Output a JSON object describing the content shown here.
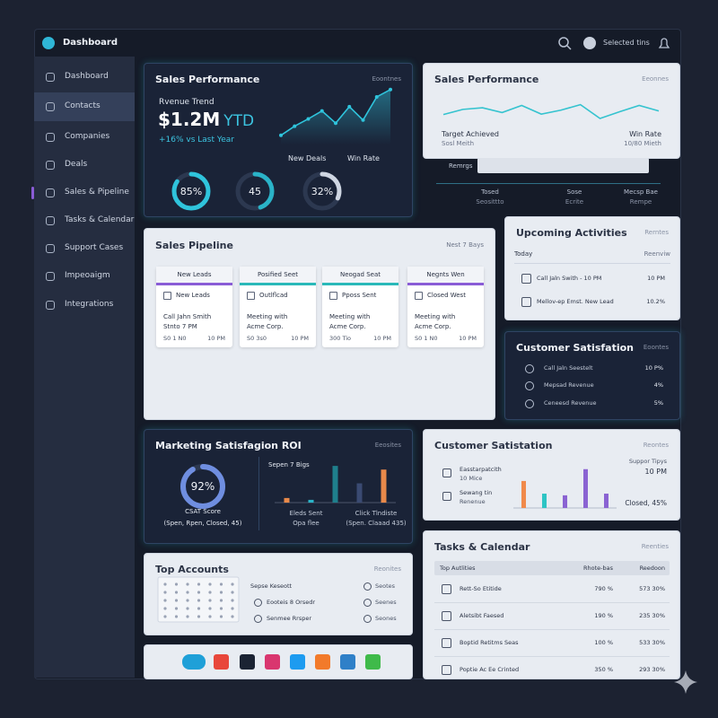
{
  "topbar": {
    "title": "Dashboard",
    "user": "Selected tins"
  },
  "sidebar": [
    "Dashboard",
    "Contacts",
    "Companies",
    "Deals",
    "Sales & Pipeline",
    "Tasks & Calendar",
    "Support Cases",
    "Impeoaigm",
    "Integrations"
  ],
  "sales_performance": {
    "title": "Sales Performance",
    "action": "Eoontnes",
    "trend_label": "Rvenue Trend",
    "revenue": "$1.2M",
    "revenue_suffix": "YTD",
    "change": "+16% vs Last Year",
    "legend": [
      "New Deals",
      "Win Rate"
    ],
    "trend": [
      15,
      30,
      42,
      55,
      35,
      62,
      40,
      78,
      90
    ],
    "ylim": [
      0,
      100
    ],
    "donuts": [
      {
        "value": 85,
        "label": "85%",
        "color": "#2fc4dc"
      },
      {
        "value": 45,
        "label": "45",
        "color": "#2ab3c8"
      },
      {
        "value": 32,
        "label": "32%",
        "color": "#cfd6e2"
      }
    ]
  },
  "sales_performance_2": {
    "title": "Sales Performance",
    "action": "Eeonnes",
    "trend": [
      35,
      48,
      52,
      40,
      58,
      36,
      46,
      60,
      25,
      42,
      58,
      44
    ],
    "ylim": [
      0,
      100
    ],
    "left": [
      "Target Achieved",
      "Sosl Meith"
    ],
    "right": [
      "Win Rate",
      "10/80 Mieth"
    ],
    "tab": "Remrgs",
    "stats": [
      [
        "Tosed",
        "Seosittto"
      ],
      [
        "Sose",
        "Ecrite"
      ],
      [
        "Mecsp Bae",
        "Rempe"
      ]
    ]
  },
  "pipeline": {
    "title": "Sales Pipeline",
    "range": "Nest 7 Bays",
    "columns": [
      {
        "header": "New Leads",
        "color": "#8a5cd6",
        "tag": "New Leads",
        "lines": [
          "Call Jahn Smith",
          "Stnto 7 PM"
        ],
        "footer": [
          "S0 1 N0",
          "10 PM"
        ]
      },
      {
        "header": "Posified Seet",
        "color": "#2ab9b9",
        "tag": "Outlflcad",
        "lines": [
          "Meeting with",
          "Acme Corp."
        ],
        "footer": [
          "S0 3s0",
          "10 PM"
        ]
      },
      {
        "header": "Neogad Seat",
        "color": "#2ab9b9",
        "tag": "Pposs Sent",
        "lines": [
          "Meeting with",
          "Acme Corp."
        ],
        "footer": [
          "300 Tio",
          "10 PM"
        ]
      },
      {
        "header": "Negnts Wen",
        "color": "#8a5cd6",
        "tag": "Closed West",
        "lines": [
          "Meeting with",
          "Acme Corp."
        ],
        "footer": [
          "S0 1 N0",
          "10 PM"
        ]
      }
    ]
  },
  "upcoming": {
    "title": "Upcoming Activities",
    "action": "Rerntes",
    "today": "Today",
    "review": "Reenviw",
    "items": [
      [
        "Call Jaln Swith - 10 PM",
        "10 PM"
      ],
      [
        "Mellov-ep Emst. New Lead",
        "10.2%"
      ]
    ]
  },
  "satisfaction": {
    "title": "Customer Satisfation",
    "action": "Eoontes",
    "rows": [
      [
        "Call Jaln Seestelt",
        "10 P%"
      ],
      [
        "Mepsad Revenue",
        "4%"
      ],
      [
        "Ceneesd Revenue",
        "5%"
      ]
    ]
  },
  "marketing": {
    "title": "Marketing Satisfagion ROI",
    "action": "Eeosites",
    "donut": {
      "value": 92,
      "label": "92%",
      "color": "#6f8ee0"
    },
    "score": "CSAT Score",
    "score_note": "(Spen, Rpen, Closed, 45)",
    "bars_title": "Sepen 7 Bigs",
    "bars": [
      {
        "value": 5,
        "color": "#e8894a"
      },
      {
        "value": 3,
        "color": "#2ab3c8"
      },
      {
        "value": 40,
        "color": "#1f7f8c"
      },
      {
        "value": 21,
        "color": "#3a4a72"
      },
      {
        "value": 36,
        "color": "#e8894a"
      }
    ],
    "ylim": [
      0,
      45
    ],
    "captions": [
      [
        "Eleds Sent",
        "Opa flee"
      ],
      [
        "Click Tlndiste",
        "(Spen. Claaad 435)"
      ]
    ]
  },
  "satisfaction_2": {
    "title": "Customer Satistation",
    "action": "Reontes",
    "left": [
      [
        "Easstarpatcith",
        "10 Mice"
      ],
      [
        "Sewang tin",
        "Renenue"
      ]
    ],
    "right": [
      "Suppor Tipys",
      "10 PM",
      "Closed, 45%"
    ],
    "bars": [
      {
        "value": 32,
        "color": "#f08a4b"
      },
      {
        "value": 17,
        "color": "#2ec4c4"
      },
      {
        "value": 15,
        "color": "#8a63d2"
      },
      {
        "value": 46,
        "color": "#8a63d2"
      },
      {
        "value": 17,
        "color": "#8a63d2"
      }
    ],
    "ylim": [
      0,
      50
    ]
  },
  "accounts": {
    "title": "Top Accounts",
    "action": "Reonites",
    "items": [
      [
        "Sepse Keseott",
        "Seotes"
      ],
      [
        "Eooteis 8 Orsedr",
        "Seenes"
      ],
      [
        "Senmee Rrsper",
        "Seones"
      ]
    ]
  },
  "tasks": {
    "title": "Tasks & Calendar",
    "action": "Reenties",
    "header": [
      "Top Autlities",
      "Rhote-bas",
      "Reedoon"
    ],
    "rows": [
      [
        "Rett-So Etitide",
        "790 %",
        "573 30%"
      ],
      [
        "Aletsibt Faesed",
        "190 %",
        "235 30%"
      ],
      [
        "Boptid Retitms Seas",
        "100 %",
        "533 30%"
      ],
      [
        "Poptie Ac Ee Crinted",
        "350 %",
        "293 30%"
      ]
    ]
  }
}
